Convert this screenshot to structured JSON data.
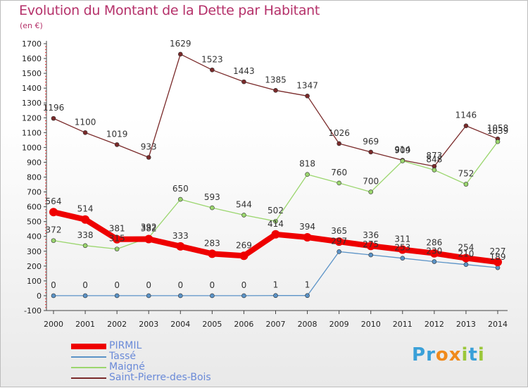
{
  "title": "Evolution du Montant de la Dette par Habitant",
  "subtitle": "(en €)",
  "logo": {
    "text": "Proxiti",
    "letters": [
      {
        "ch": "P",
        "color": "#3aa0d8"
      },
      {
        "ch": "r",
        "color": "#3aa0d8"
      },
      {
        "ch": "o",
        "color": "#f08a1c"
      },
      {
        "ch": "x",
        "color": "#f08a1c"
      },
      {
        "ch": "i",
        "color": "#9bc73a"
      },
      {
        "ch": "t",
        "color": "#3aa0d8"
      },
      {
        "ch": "i",
        "color": "#9bc73a"
      }
    ]
  },
  "chart_data": {
    "type": "line",
    "title": "Evolution du Montant de la Dette par Habitant",
    "subtitle": "(en €)",
    "x": [
      "2000",
      "2001",
      "2002",
      "2003",
      "2004",
      "2005",
      "2006",
      "2007",
      "2008",
      "2009",
      "2010",
      "2011",
      "2012",
      "2013",
      "2014"
    ],
    "ylim": [
      -100,
      1700
    ],
    "yticks": [
      -100,
      0,
      100,
      200,
      300,
      400,
      500,
      600,
      700,
      800,
      900,
      1000,
      1100,
      1200,
      1300,
      1400,
      1500,
      1600,
      1700
    ],
    "grid": false,
    "legend_position": "bottom-left",
    "series": [
      {
        "name": "PIRMIL",
        "color": "#ee0000",
        "width": 8,
        "marker": 6,
        "values": [
          564,
          514,
          381,
          382,
          333,
          283,
          269,
          414,
          394,
          365,
          336,
          311,
          286,
          254,
          227
        ]
      },
      {
        "name": "Tassé",
        "color": "#5b93c7",
        "width": 1.3,
        "marker": 3,
        "values": [
          0,
          0,
          0,
          0,
          0,
          0,
          0,
          1,
          1,
          297,
          275,
          253,
          230,
          210,
          189
        ]
      },
      {
        "name": "Maigné",
        "color": "#9bd66e",
        "width": 1.3,
        "marker": 3,
        "values": [
          372,
          338,
          315,
          392,
          650,
          593,
          544,
          502,
          818,
          760,
          700,
          909,
          848,
          752,
          1039
        ]
      },
      {
        "name": "Saint-Pierre-des-Bois",
        "color": "#7a2a2a",
        "width": 1.3,
        "marker": 3,
        "values": [
          1196,
          1100,
          1019,
          933,
          1629,
          1523,
          1443,
          1385,
          1347,
          1026,
          969,
          914,
          873,
          1146,
          1058
        ]
      }
    ],
    "data_labels": [
      {
        "series": 0,
        "texts": [
          "564",
          "514",
          "381",
          "382",
          "333",
          "283",
          "269",
          "414",
          "394",
          "365",
          "336",
          "311",
          "286",
          "254",
          "227"
        ]
      },
      {
        "series": 1,
        "texts": [
          "0",
          "0",
          "0",
          "0",
          "0",
          "0",
          "0",
          "1",
          "1",
          "297",
          "275",
          "253",
          "230",
          "210",
          "189"
        ]
      },
      {
        "series": 2,
        "texts": [
          "372",
          "338",
          "315",
          "392",
          "650",
          "593",
          "544",
          "502",
          "818",
          "760",
          "700",
          "909",
          "848",
          "752",
          "1039"
        ]
      },
      {
        "series": 3,
        "texts": [
          "1196",
          "1100",
          "1019",
          "933",
          "1629",
          "1523",
          "1443",
          "1385",
          "1347",
          "1026",
          "969",
          "914",
          "873",
          "1146",
          "1058"
        ]
      }
    ]
  }
}
